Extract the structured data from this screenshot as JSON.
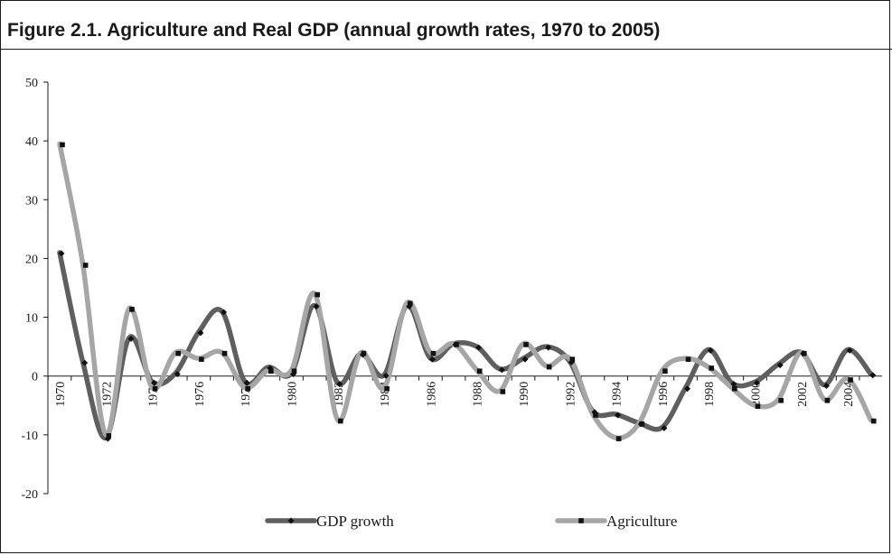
{
  "figure": {
    "title": "Figure 2.1.  Agriculture and Real GDP (annual growth rates, 1970 to 2005)"
  },
  "chart_data": {
    "type": "line",
    "title": "Figure 2.1.  Agriculture and Real GDP (annual growth rates, 1970 to 2005)",
    "xlabel": "",
    "ylabel": "",
    "ylim": [
      -20,
      50
    ],
    "yticks": [
      50,
      40,
      30,
      20,
      10,
      0,
      -10,
      -20
    ],
    "x": [
      1970,
      1971,
      1972,
      1973,
      1974,
      1975,
      1976,
      1977,
      1978,
      1979,
      1980,
      1981,
      1982,
      1983,
      1984,
      1985,
      1986,
      1987,
      1988,
      1989,
      1990,
      1991,
      1992,
      1993,
      1994,
      1995,
      1996,
      1997,
      1998,
      1999,
      2000,
      2001,
      2002,
      2003,
      2004,
      2005
    ],
    "xticks": [
      "1970",
      "1972",
      "1974",
      "1976",
      "1978",
      "1980",
      "1982",
      "1984",
      "1986",
      "1988",
      "1990",
      "1992",
      "1994",
      "1996",
      "1998",
      "2000",
      "2002",
      "2004"
    ],
    "grid": false,
    "legend_position": "bottom",
    "series": [
      {
        "name": "GDP growth",
        "color": "#5f5f5f",
        "marker": "diamond",
        "values": [
          21,
          2.4,
          -10.5,
          6.5,
          -1,
          0.5,
          7.5,
          11,
          -1,
          1.5,
          0.5,
          12,
          -1.2,
          3.8,
          0.2,
          12,
          3,
          5.5,
          5,
          1.2,
          3,
          5,
          2.5,
          -6,
          -6.5,
          -8,
          -8.7,
          -2,
          4.5,
          -1.2,
          -1,
          2,
          4,
          -1.5,
          4.5,
          0.3
        ]
      },
      {
        "name": "Agriculture",
        "color": "#a6a6a6",
        "marker": "square",
        "values": [
          39.5,
          19,
          -10,
          11.5,
          -2,
          4,
          3,
          4,
          -2,
          1,
          1,
          14,
          -7.5,
          4,
          -2,
          12.5,
          4,
          5.5,
          1,
          -2.5,
          5.5,
          1.7,
          3,
          -6.5,
          -10.5,
          -8,
          1,
          3,
          1.5,
          -2,
          -5,
          -4,
          4,
          -4,
          -0.5,
          -7.5
        ]
      }
    ]
  }
}
